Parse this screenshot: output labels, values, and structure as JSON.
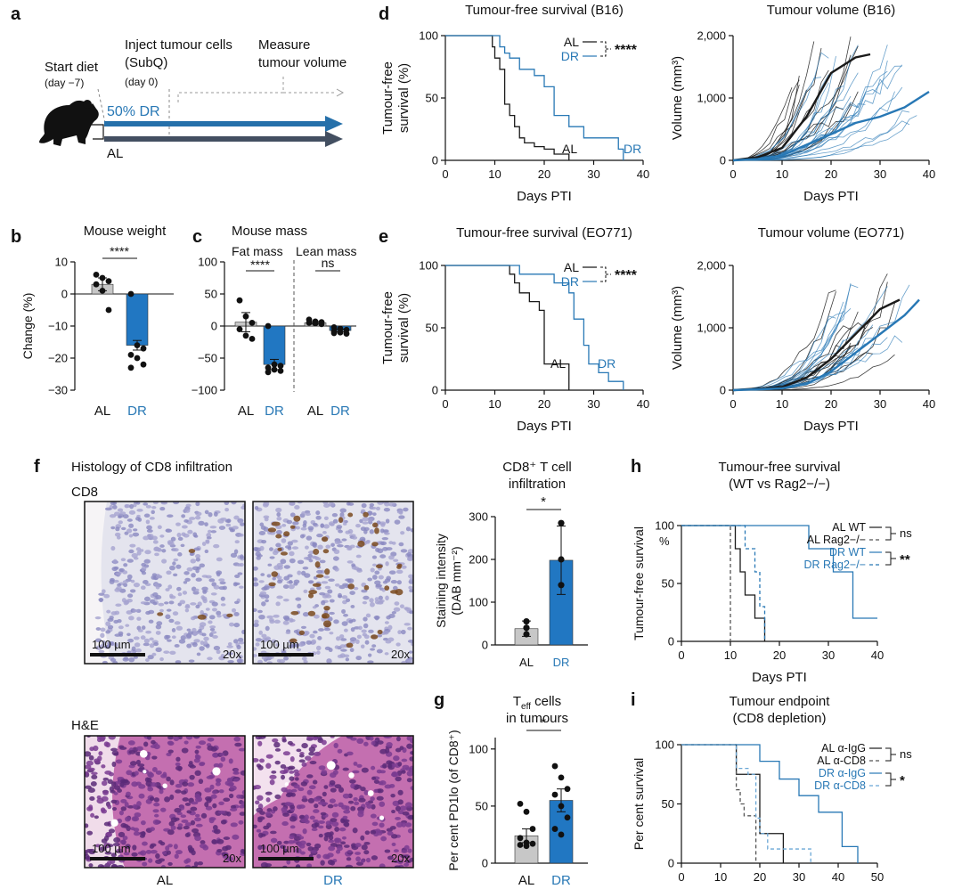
{
  "colors": {
    "al": "#1a1a1a",
    "dr": "#2878b5",
    "gray_bar": "#c7c7c7",
    "dr_bar": "#2177c2",
    "arrow_dr": "#2570aa",
    "arrow_al": "#434f61"
  },
  "panels": {
    "a": {
      "letter": "a",
      "start_diet": "Start diet",
      "start_day": "(day −7)",
      "inject_1": "Inject tumour cells",
      "inject_2": "(SubQ)",
      "inject_day": "(day 0)",
      "measure_1": "Measure",
      "measure_2": "tumour volume",
      "dr_label": "50% DR",
      "al_label": "AL",
      "icon": "mouse-icon"
    },
    "b": {
      "letter": "b"
    },
    "c": {
      "letter": "c",
      "fat": "Fat mass",
      "lean": "Lean mass"
    },
    "d": {
      "letter": "d"
    },
    "e": {
      "letter": "e"
    },
    "f": {
      "letter": "f",
      "title": "Histology of CD8 infiltration",
      "cd8": "CD8",
      "he": "H&E",
      "scale": "100 µm",
      "mag": "20x",
      "al": "AL",
      "dr": "DR"
    },
    "g": {
      "letter": "g"
    },
    "h": {
      "letter": "h"
    },
    "i": {
      "letter": "i"
    }
  },
  "chart_data": [
    {
      "id": "b",
      "type": "bar",
      "title": "Mouse weight",
      "ylabel": "Change (%)",
      "categories": [
        "AL",
        "DR"
      ],
      "values": [
        3,
        -16
      ],
      "errors": [
        2,
        1.5
      ],
      "ylim": [
        -30,
        10
      ],
      "yticks": [
        10,
        0,
        -10,
        -20,
        -30
      ],
      "points": [
        [
          6,
          5,
          4,
          3,
          1,
          -5
        ],
        [
          0,
          -16,
          -17,
          -19,
          -20,
          -22,
          -23
        ]
      ],
      "significance": "****"
    },
    {
      "id": "c",
      "type": "bar",
      "title": "Mouse mass",
      "ylabel": "",
      "groups": [
        "Fat mass",
        "Lean mass"
      ],
      "categories": [
        "AL",
        "DR",
        "AL",
        "DR"
      ],
      "values": [
        6,
        -60,
        5,
        -7
      ],
      "errors": [
        15,
        8,
        2,
        2
      ],
      "ylim": [
        -100,
        100
      ],
      "yticks": [
        100,
        50,
        0,
        -50,
        -100
      ],
      "points": [
        [
          40,
          15,
          5,
          -5,
          -15,
          -20
        ],
        [
          0,
          -60,
          -62,
          -65,
          -68,
          -70,
          -72
        ],
        [
          10,
          7,
          6,
          5,
          4,
          3
        ],
        [
          -2,
          -4,
          -6,
          -8,
          -10,
          -12,
          -11
        ]
      ],
      "significance": [
        "****",
        "ns"
      ]
    },
    {
      "id": "d1",
      "type": "line",
      "title": "Tumour-free survival (B16)",
      "xlabel": "Days PTI",
      "ylabel": "Tumour-free survival (%)",
      "xlim": [
        0,
        40
      ],
      "ylim": [
        0,
        100
      ],
      "xticks": [
        0,
        10,
        20,
        30,
        40
      ],
      "yticks": [
        0,
        50,
        100
      ],
      "series": [
        {
          "name": "AL",
          "label": "AL",
          "x": [
            0,
            9,
            9.5,
            10,
            11,
            12,
            13,
            14,
            15,
            16,
            18,
            20,
            22,
            23,
            25
          ],
          "y": [
            100,
            100,
            91,
            82,
            73,
            45,
            36,
            27,
            18,
            14,
            11,
            9,
            5,
            5,
            0
          ]
        },
        {
          "name": "DR",
          "label": "DR",
          "x": [
            0,
            10,
            11,
            12,
            13,
            15,
            18,
            20,
            22,
            25,
            28,
            33,
            35,
            36
          ],
          "y": [
            100,
            100,
            91,
            86,
            82,
            73,
            68,
            59,
            36,
            27,
            18,
            18,
            9,
            0
          ]
        }
      ],
      "significance": "****"
    },
    {
      "id": "d2",
      "type": "line",
      "title": "Tumour volume (B16)",
      "xlabel": "Days PTI",
      "ylabel": "Volume (mm³)",
      "xlim": [
        0,
        40
      ],
      "ylim": [
        0,
        2000
      ],
      "xticks": [
        0,
        10,
        20,
        30,
        40
      ],
      "yticks": [
        0,
        1000,
        2000
      ],
      "yticklabels": [
        "0",
        "1,000",
        "2,000"
      ],
      "series": [
        {
          "name": "AL",
          "x": [
            0,
            5,
            10,
            15,
            20,
            25,
            28
          ],
          "y": [
            0,
            50,
            200,
            700,
            1400,
            1650,
            1700
          ]
        },
        {
          "name": "DR",
          "x": [
            0,
            5,
            10,
            15,
            20,
            25,
            30,
            35,
            40
          ],
          "y": [
            0,
            20,
            80,
            250,
            420,
            600,
            700,
            850,
            1100
          ]
        }
      ]
    },
    {
      "id": "e1",
      "type": "line",
      "title": "Tumour-free survival (EO771)",
      "xlabel": "Days PTI",
      "ylabel": "Tumour-free survival (%)",
      "xlim": [
        0,
        40
      ],
      "ylim": [
        0,
        100
      ],
      "xticks": [
        0,
        10,
        20,
        30,
        40
      ],
      "yticks": [
        0,
        50,
        100
      ],
      "series": [
        {
          "name": "AL",
          "label": "AL",
          "x": [
            0,
            12,
            13,
            14,
            15,
            17,
            19,
            20,
            25
          ],
          "y": [
            100,
            100,
            93,
            86,
            78,
            71,
            64,
            21,
            0
          ]
        },
        {
          "name": "DR",
          "label": "DR",
          "x": [
            0,
            14,
            15,
            20,
            22,
            25,
            26,
            28,
            29,
            31,
            33,
            36
          ],
          "y": [
            100,
            100,
            93,
            93,
            86,
            78,
            57,
            36,
            21,
            14,
            7,
            0
          ]
        }
      ],
      "significance": "****"
    },
    {
      "id": "e2",
      "type": "line",
      "title": "Tumour volume (EO771)",
      "xlabel": "Days PTI",
      "ylabel": "Volume (mm³)",
      "xlim": [
        0,
        40
      ],
      "ylim": [
        0,
        2000
      ],
      "xticks": [
        0,
        10,
        20,
        30,
        40
      ],
      "yticks": [
        0,
        1000,
        2000
      ],
      "yticklabels": [
        "0",
        "1,000",
        "2,000"
      ],
      "series": [
        {
          "name": "AL",
          "x": [
            0,
            10,
            15,
            20,
            25,
            30,
            34
          ],
          "y": [
            0,
            50,
            200,
            500,
            900,
            1300,
            1450
          ]
        },
        {
          "name": "DR",
          "x": [
            0,
            10,
            15,
            20,
            25,
            30,
            35,
            38
          ],
          "y": [
            0,
            30,
            100,
            300,
            600,
            900,
            1200,
            1450
          ]
        }
      ]
    },
    {
      "id": "f2",
      "type": "bar",
      "title_line1": "CD8⁺ T cell",
      "title_line2": "infiltration",
      "ylabel_line1": "Staining intensity",
      "ylabel_line2": "(DAB mm⁻²)",
      "categories": [
        "AL",
        "DR"
      ],
      "values": [
        38,
        198
      ],
      "errors": [
        18,
        80
      ],
      "ylim": [
        0,
        300
      ],
      "yticks": [
        0,
        100,
        200,
        300
      ],
      "points": [
        [
          55,
          40,
          25
        ],
        [
          285,
          200,
          140
        ]
      ],
      "significance": "*"
    },
    {
      "id": "g",
      "type": "bar",
      "title_line1": "T",
      "title_sub": "eff",
      "title_rest": " cells",
      "title_line2": "in tumours",
      "ylabel": "Per cent PD1lo (of CD8⁺)",
      "categories": [
        "AL",
        "DR"
      ],
      "values": [
        24,
        55
      ],
      "errors": [
        6,
        10
      ],
      "ylim": [
        0,
        110
      ],
      "yticks": [
        0,
        50,
        100
      ],
      "points": [
        [
          52,
          45,
          30,
          22,
          18,
          17,
          16,
          15
        ],
        [
          85,
          75,
          65,
          60,
          50,
          40,
          30,
          25
        ]
      ],
      "significance": "*"
    },
    {
      "id": "h",
      "type": "line",
      "title_line1": "Tumour-free survival",
      "title_line2": "(WT vs Rag2−/−)",
      "xlabel": "Days PTI",
      "ylabel_line1": "Tumour-free survival",
      "ylabel_line2": "%",
      "xlim": [
        0,
        40
      ],
      "ylim": [
        0,
        100
      ],
      "xticks": [
        0,
        10,
        20,
        30,
        40
      ],
      "yticks": [
        0,
        50,
        100
      ],
      "series": [
        {
          "name": "AL WT",
          "x": [
            0,
            10,
            11,
            12,
            13,
            15,
            17
          ],
          "y": [
            100,
            100,
            80,
            60,
            40,
            20,
            0
          ]
        },
        {
          "name": "AL Rag2−/−",
          "x": [
            0,
            10
          ],
          "y": [
            100,
            0
          ]
        },
        {
          "name": "DR WT",
          "x": [
            0,
            26,
            31,
            35,
            40
          ],
          "y": [
            100,
            80,
            60,
            20,
            20
          ]
        },
        {
          "name": "DR Rag2−/−",
          "x": [
            0,
            13,
            15,
            16,
            17
          ],
          "y": [
            100,
            80,
            60,
            30,
            0
          ]
        }
      ],
      "significance": [
        "ns",
        "**"
      ]
    },
    {
      "id": "i",
      "type": "line",
      "title_line1": "Tumour endpoint",
      "title_line2": "(CD8 depletion)",
      "xlabel": "",
      "ylabel": "Per cent survival",
      "xlim": [
        0,
        50
      ],
      "ylim": [
        0,
        100
      ],
      "xticks": [
        0,
        10,
        20,
        30,
        40,
        50
      ],
      "yticks": [
        0,
        50,
        100
      ],
      "series": [
        {
          "name": "AL α-IgG",
          "x": [
            0,
            14,
            20,
            26
          ],
          "y": [
            100,
            75,
            25,
            0
          ]
        },
        {
          "name": "AL α-CD8",
          "x": [
            0,
            14,
            15,
            16,
            19
          ],
          "y": [
            100,
            62,
            50,
            40,
            0
          ]
        },
        {
          "name": "DR α-IgG",
          "x": [
            0,
            19,
            20,
            25,
            30,
            35,
            41,
            45
          ],
          "y": [
            100,
            100,
            86,
            71,
            57,
            43,
            14,
            0
          ]
        },
        {
          "name": "DR α-CD8",
          "x": [
            0,
            14,
            17,
            19,
            20,
            22,
            26,
            33
          ],
          "y": [
            100,
            80,
            75,
            38,
            25,
            12,
            12,
            0
          ]
        }
      ],
      "significance": [
        "ns",
        "*"
      ]
    }
  ]
}
